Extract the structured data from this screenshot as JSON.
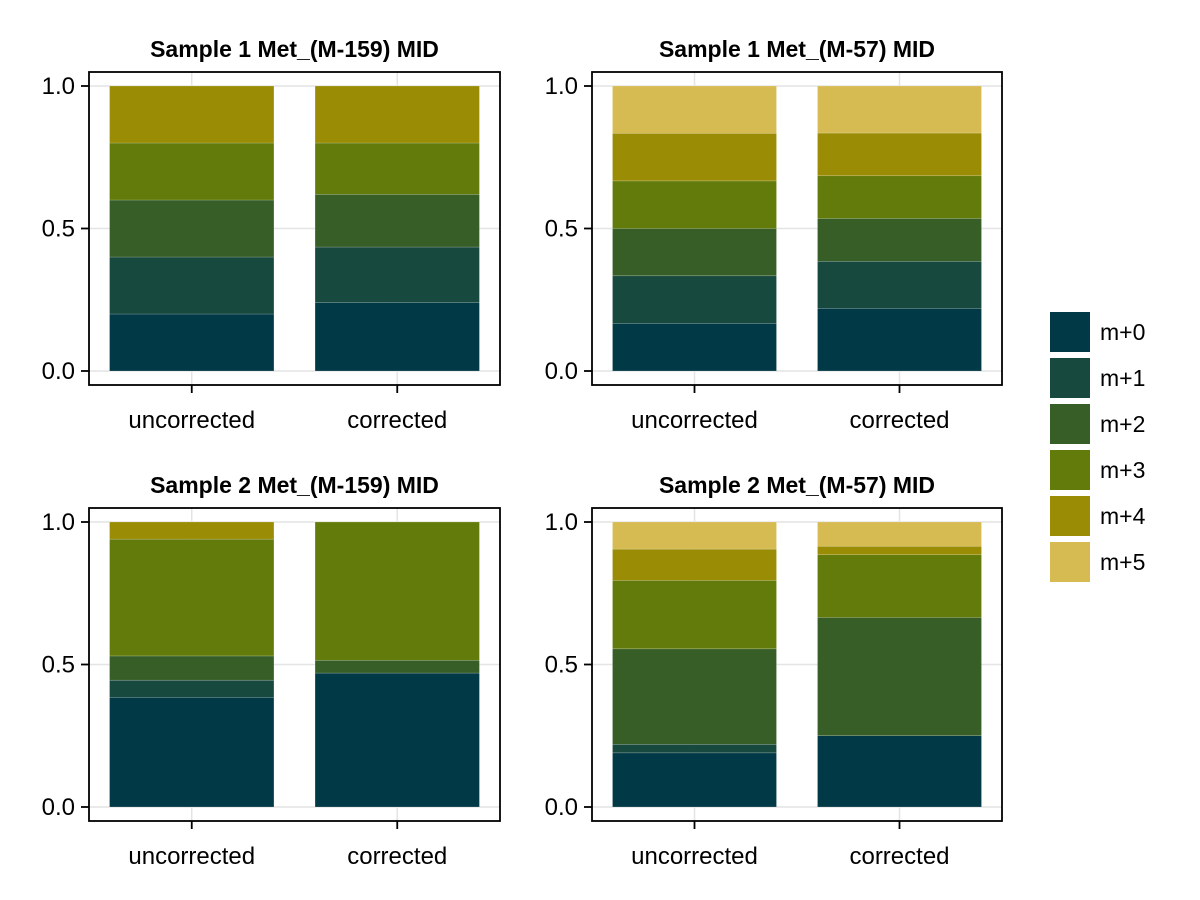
{
  "chart_data": {
    "type": "bar",
    "stacked": true,
    "colors": {
      "m+0": "#023946",
      "m+1": "#18493e",
      "m+2": "#375e26",
      "m+3": "#637b0a",
      "m+4": "#9a8c04",
      "m+5": "#d6bb52"
    },
    "legend": {
      "position": "right",
      "entries": [
        "m+0",
        "m+1",
        "m+2",
        "m+3",
        "m+4",
        "m+5"
      ]
    },
    "panels": [
      {
        "title": "Sample 1 Met_(M-159) MID",
        "categories": [
          "uncorrected",
          "corrected"
        ],
        "ylim": [
          0,
          1
        ],
        "yticks": [
          "0.0",
          "0.5",
          "1.0"
        ],
        "series": [
          {
            "name": "m+0",
            "values": [
              0.2,
              0.24
            ]
          },
          {
            "name": "m+1",
            "values": [
              0.2,
              0.195
            ]
          },
          {
            "name": "m+2",
            "values": [
              0.2,
              0.185
            ]
          },
          {
            "name": "m+3",
            "values": [
              0.2,
              0.18
            ]
          },
          {
            "name": "m+4",
            "values": [
              0.2,
              0.2
            ]
          }
        ]
      },
      {
        "title": "Sample 1 Met_(M-57) MID",
        "categories": [
          "uncorrected",
          "corrected"
        ],
        "ylim": [
          0,
          1
        ],
        "yticks": [
          "0.0",
          "0.5",
          "1.0"
        ],
        "series": [
          {
            "name": "m+0",
            "values": [
              0.167,
              0.22
            ]
          },
          {
            "name": "m+1",
            "values": [
              0.167,
              0.165
            ]
          },
          {
            "name": "m+2",
            "values": [
              0.166,
              0.15
            ]
          },
          {
            "name": "m+3",
            "values": [
              0.167,
              0.15
            ]
          },
          {
            "name": "m+4",
            "values": [
              0.167,
              0.15
            ]
          },
          {
            "name": "m+5",
            "values": [
              0.166,
              0.165
            ]
          }
        ]
      },
      {
        "title": "Sample 2 Met_(M-159) MID",
        "categories": [
          "uncorrected",
          "corrected"
        ],
        "ylim": [
          0,
          1
        ],
        "yticks": [
          "0.0",
          "0.5",
          "1.0"
        ],
        "series": [
          {
            "name": "m+0",
            "values": [
              0.385,
              0.47
            ]
          },
          {
            "name": "m+1",
            "values": [
              0.06,
              0.0
            ]
          },
          {
            "name": "m+2",
            "values": [
              0.085,
              0.045
            ]
          },
          {
            "name": "m+3",
            "values": [
              0.41,
              0.485
            ]
          },
          {
            "name": "m+4",
            "values": [
              0.06,
              0.0
            ]
          }
        ]
      },
      {
        "title": "Sample 2 Met_(M-57) MID",
        "categories": [
          "uncorrected",
          "corrected"
        ],
        "ylim": [
          0,
          1
        ],
        "yticks": [
          "0.0",
          "0.5",
          "1.0"
        ],
        "series": [
          {
            "name": "m+0",
            "values": [
              0.19,
              0.25
            ]
          },
          {
            "name": "m+1",
            "values": [
              0.03,
              0.0
            ]
          },
          {
            "name": "m+2",
            "values": [
              0.335,
              0.415
            ]
          },
          {
            "name": "m+3",
            "values": [
              0.24,
              0.22
            ]
          },
          {
            "name": "m+4",
            "values": [
              0.11,
              0.03
            ]
          },
          {
            "name": "m+5",
            "values": [
              0.095,
              0.085
            ]
          }
        ]
      }
    ]
  }
}
